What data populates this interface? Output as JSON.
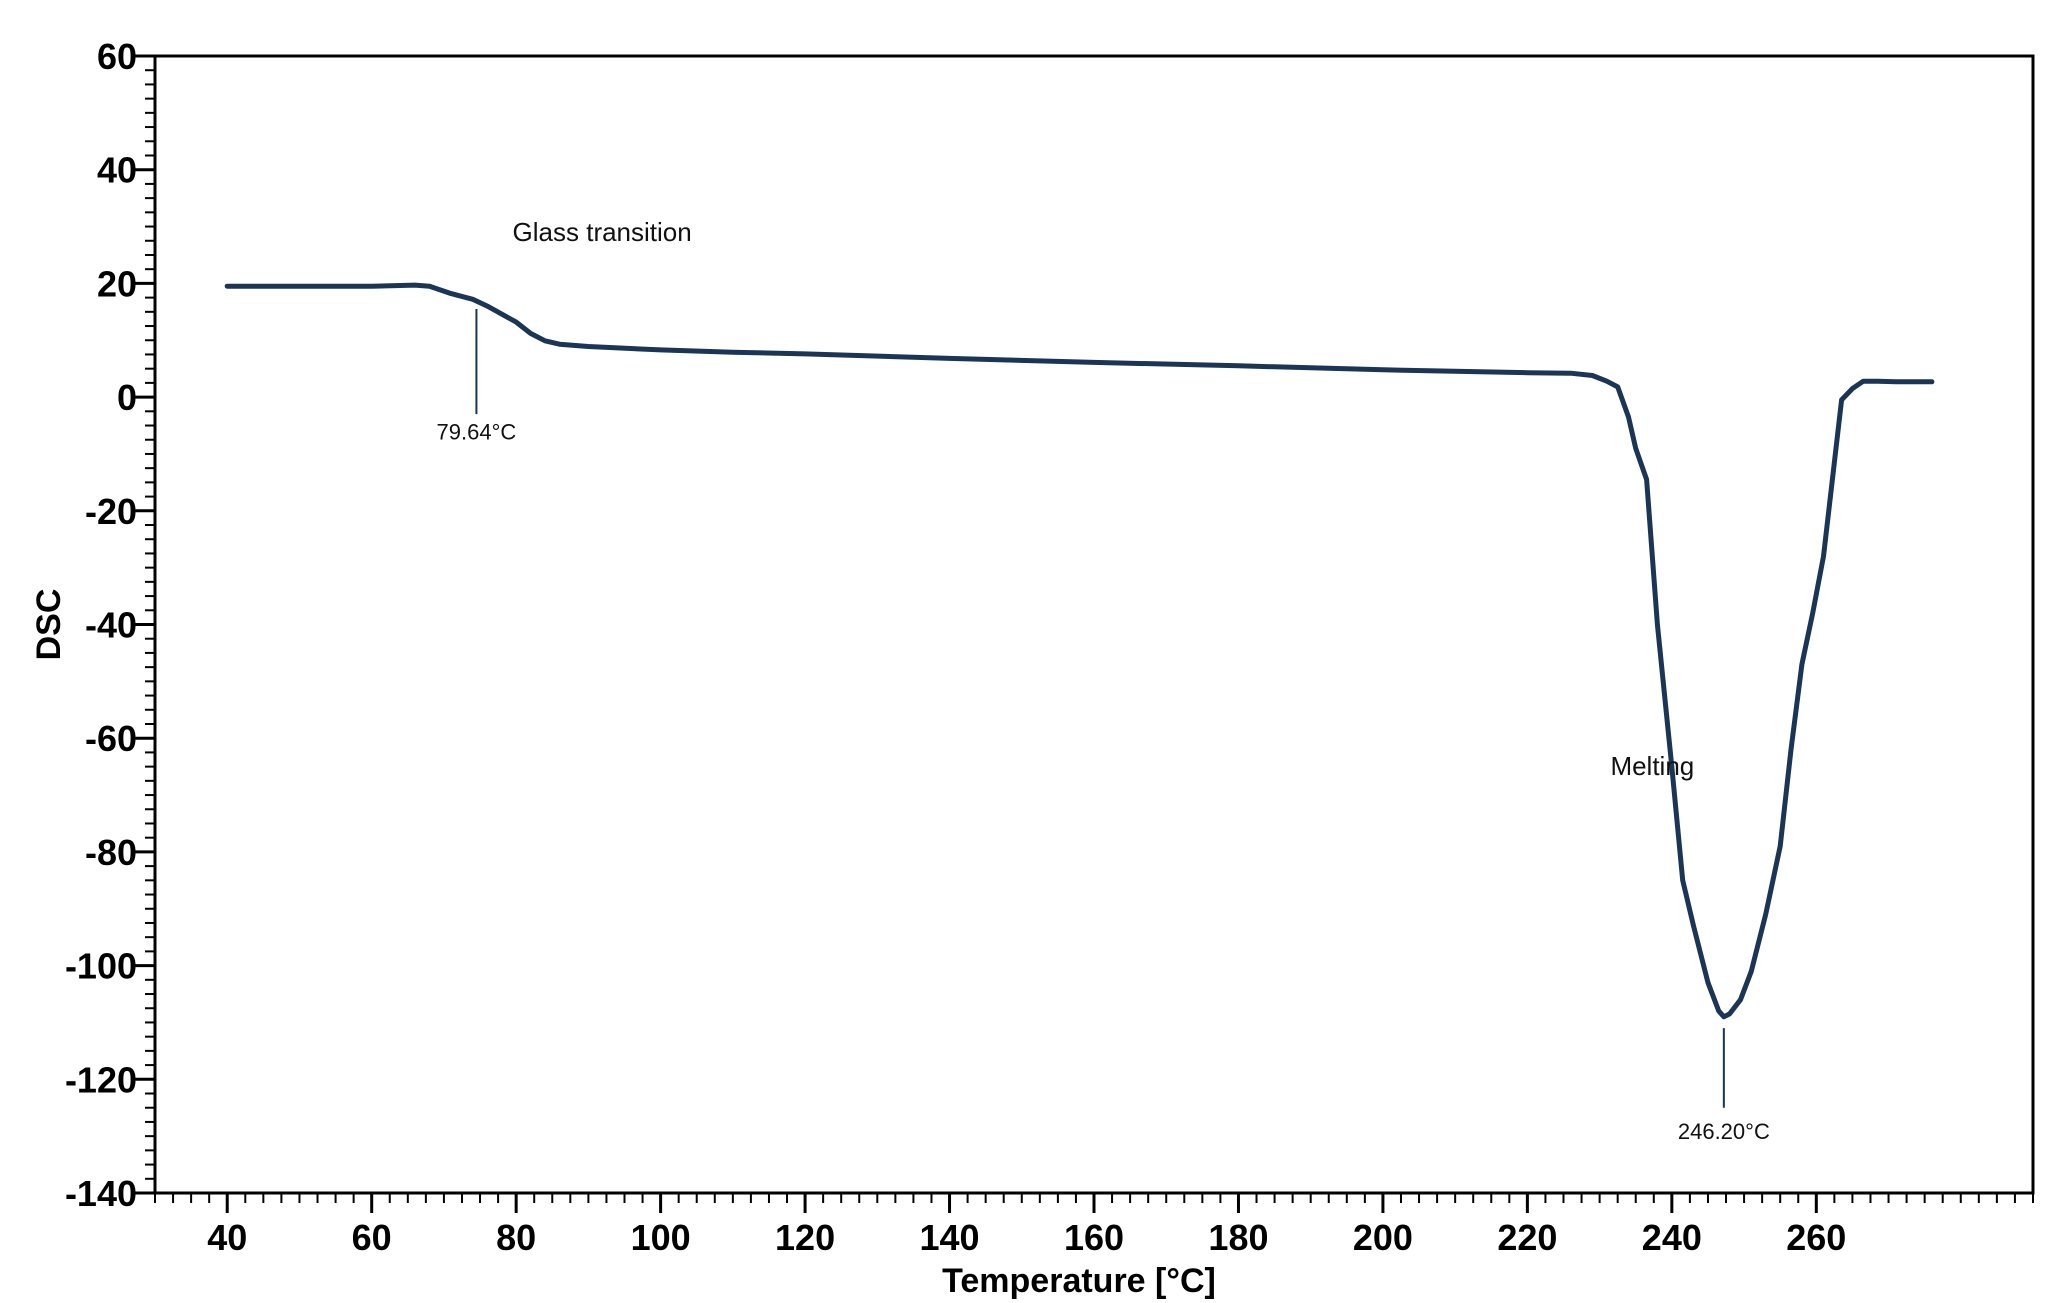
{
  "chart_data": {
    "type": "line",
    "title": "",
    "xlabel": "Temperature [°C]",
    "ylabel": "DSC",
    "xlim": [
      30,
      290
    ],
    "ylim": [
      -140,
      60
    ],
    "xticks": [
      40,
      60,
      80,
      100,
      120,
      140,
      160,
      180,
      200,
      220,
      240,
      260
    ],
    "yticks": [
      60,
      40,
      20,
      0,
      -20,
      -40,
      -60,
      -80,
      -100,
      -120,
      -140
    ],
    "grid": false,
    "line_color": "#1a3556",
    "series": [
      {
        "x": [
          40,
          50,
          60,
          66,
          68,
          71,
          74,
          76,
          80,
          82,
          84,
          86,
          88,
          90,
          100,
          110,
          120,
          140,
          160,
          180,
          200,
          220,
          226,
          229,
          231,
          232.5,
          234,
          235,
          236.5,
          238,
          240,
          241.5,
          243,
          245,
          246.5,
          247.2,
          248,
          249.5,
          251,
          253,
          255,
          256.5,
          258,
          259.5,
          261,
          263.5,
          265,
          266.5,
          268.5,
          271,
          276
        ],
        "y": [
          19.5,
          19.5,
          19.5,
          19.7,
          19.5,
          18.2,
          17.2,
          16,
          13.2,
          11.2,
          9.9,
          9.3,
          9.1,
          8.9,
          8.3,
          7.9,
          7.6,
          6.8,
          6.1,
          5.5,
          4.8,
          4.3,
          4.2,
          3.8,
          2.8,
          1.8,
          -3.5,
          -9,
          -14.5,
          -40,
          -65,
          -85,
          -93,
          -103,
          -108,
          -109,
          -108.5,
          -106,
          -101,
          -91,
          -79,
          -62,
          -47,
          -38,
          -28,
          -0.5,
          1.5,
          2.8,
          2.8,
          2.7,
          2.7
        ]
      }
    ],
    "annotations": [
      {
        "label": "Glass transition",
        "x": 79.5,
        "y": 27.5
      },
      {
        "label": "Melting",
        "x": 231.5,
        "y": -66.5
      }
    ],
    "markers": [
      {
        "label": "79.64°C",
        "x": 74.5,
        "y_top": 15.5,
        "y_bottom": -3,
        "label_y": -7.5
      },
      {
        "label": "246.20°C",
        "x": 247.2,
        "y_top": -111,
        "y_bottom": -125,
        "label_y": -130.5
      }
    ]
  }
}
